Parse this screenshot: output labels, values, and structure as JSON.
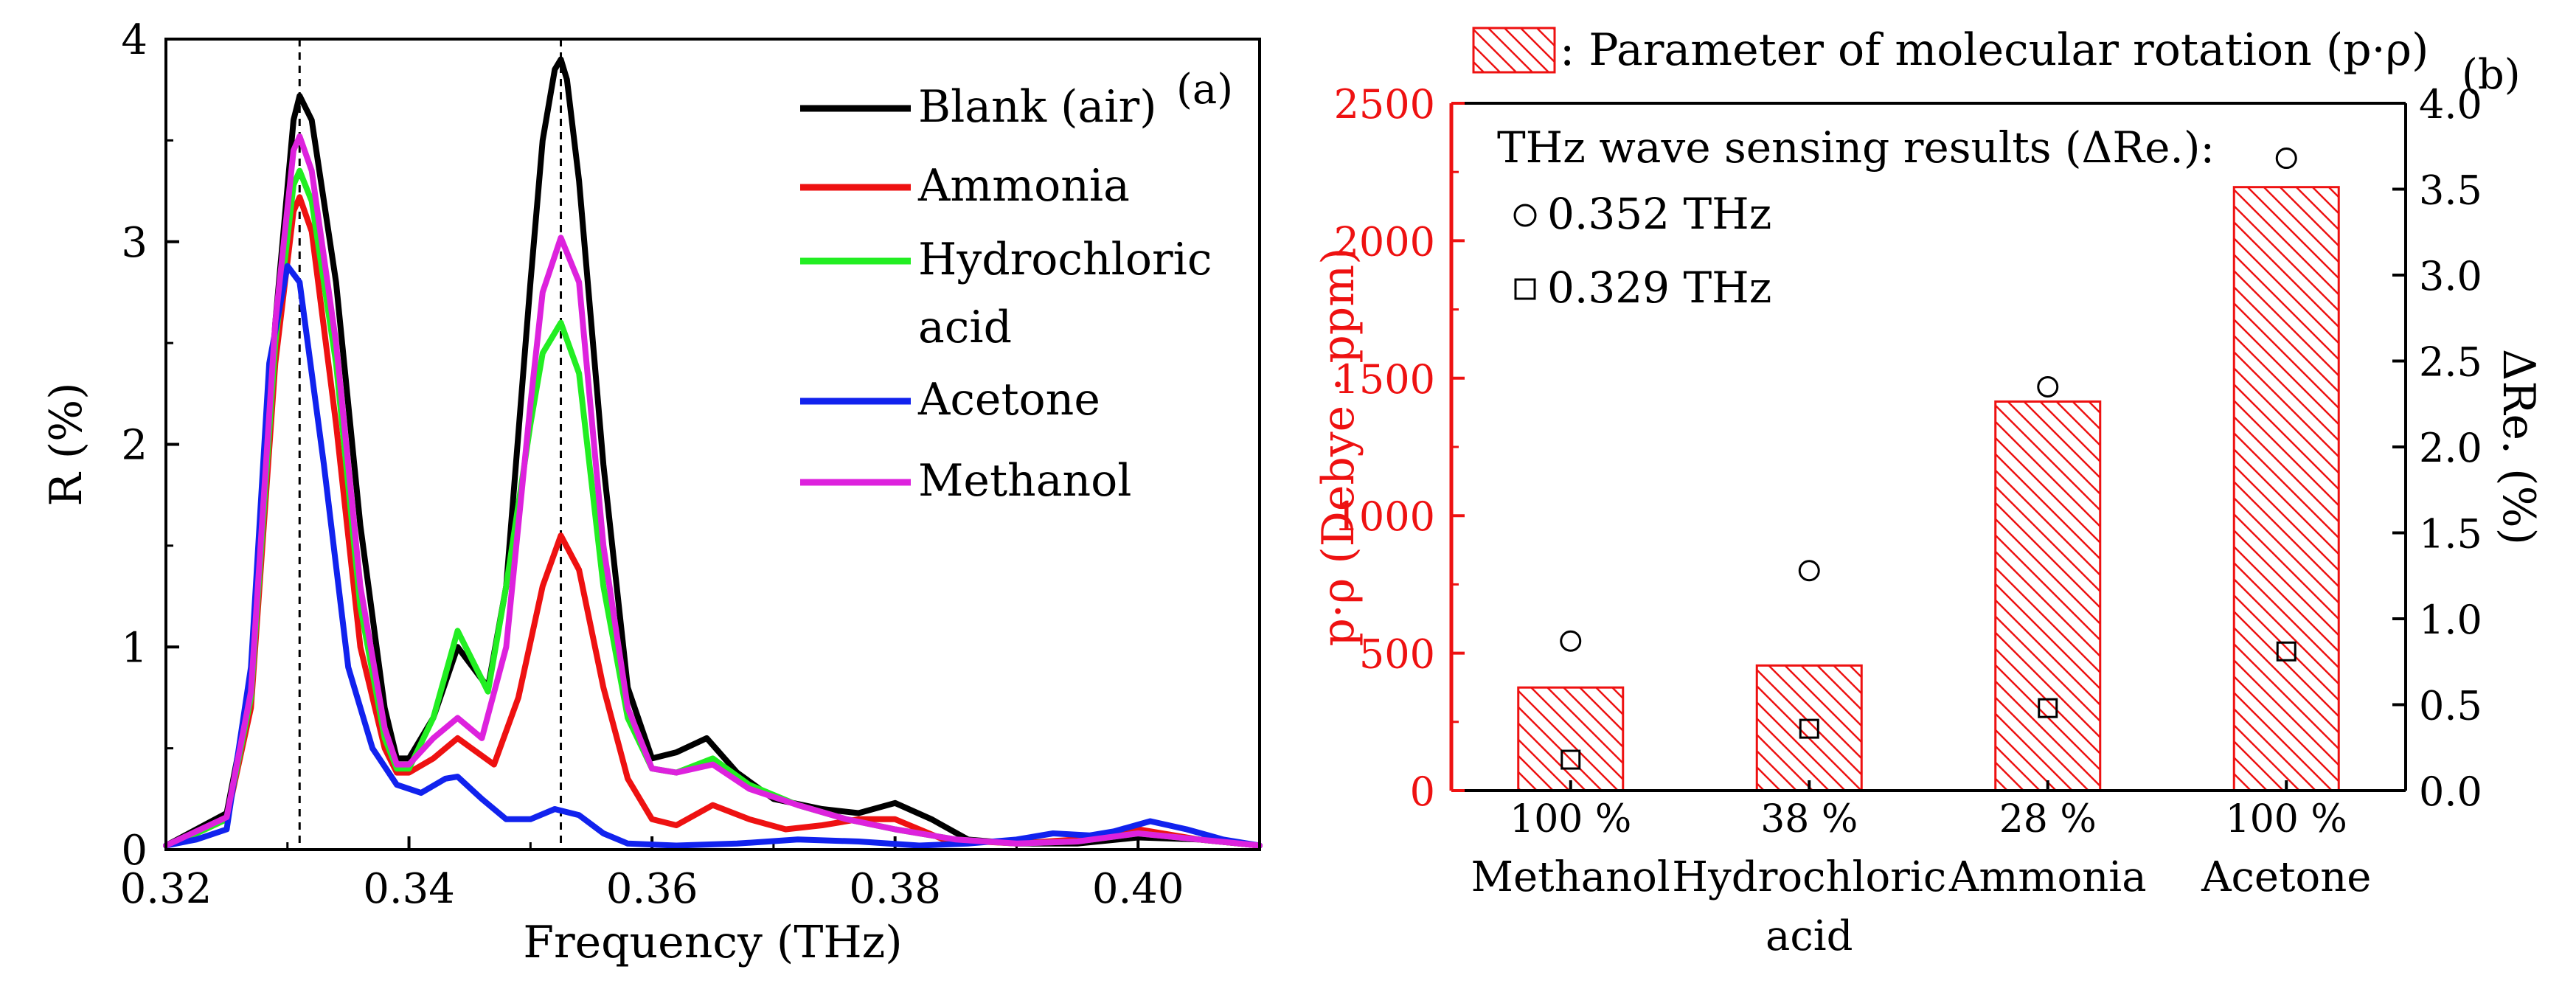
{
  "chart_data": [
    {
      "panel": "(a)",
      "type": "line",
      "xlabel": "Frequency (THz)",
      "ylabel": "R (%)",
      "xlim": [
        0.32,
        0.41
      ],
      "ylim": [
        0,
        4
      ],
      "xticks": [
        "0.32",
        "0.34",
        "0.36",
        "0.38",
        "0.40"
      ],
      "yticks": [
        "0",
        "1",
        "2",
        "3",
        "4"
      ],
      "markers": [
        0.331,
        0.3525
      ],
      "legend_position": "top-right",
      "series": [
        {
          "name": "Blank (air)",
          "legend": [
            "Blank (air)"
          ],
          "color": "#000000",
          "x": [
            0.32,
            0.3225,
            0.325,
            0.327,
            0.329,
            0.3305,
            0.331,
            0.332,
            0.334,
            0.336,
            0.338,
            0.339,
            0.34,
            0.342,
            0.344,
            0.3465,
            0.348,
            0.35,
            0.351,
            0.352,
            0.3525,
            0.353,
            0.354,
            0.356,
            0.358,
            0.36,
            0.362,
            0.3645,
            0.367,
            0.37,
            0.374,
            0.377,
            0.38,
            0.383,
            0.386,
            0.39,
            0.395,
            0.4,
            0.405,
            0.41
          ],
          "y": [
            0.02,
            0.1,
            0.18,
            0.8,
            2.6,
            3.6,
            3.72,
            3.6,
            2.8,
            1.6,
            0.7,
            0.45,
            0.45,
            0.65,
            1.0,
            0.8,
            1.3,
            2.8,
            3.5,
            3.85,
            3.9,
            3.8,
            3.3,
            1.9,
            0.8,
            0.45,
            0.48,
            0.55,
            0.38,
            0.25,
            0.2,
            0.18,
            0.23,
            0.15,
            0.05,
            0.03,
            0.03,
            0.06,
            0.05,
            0.02
          ]
        },
        {
          "name": "Ammonia",
          "legend": [
            "Ammonia"
          ],
          "color": "#ee1111",
          "x": [
            0.32,
            0.3225,
            0.325,
            0.327,
            0.329,
            0.3305,
            0.331,
            0.332,
            0.334,
            0.336,
            0.338,
            0.339,
            0.34,
            0.342,
            0.344,
            0.347,
            0.349,
            0.351,
            0.3525,
            0.354,
            0.356,
            0.358,
            0.36,
            0.362,
            0.365,
            0.368,
            0.371,
            0.374,
            0.377,
            0.38,
            0.384,
            0.39,
            0.395,
            0.4,
            0.405,
            0.41
          ],
          "y": [
            0.02,
            0.08,
            0.15,
            0.7,
            2.4,
            3.15,
            3.22,
            3.05,
            2.1,
            1.0,
            0.5,
            0.38,
            0.38,
            0.45,
            0.55,
            0.42,
            0.75,
            1.3,
            1.55,
            1.38,
            0.8,
            0.35,
            0.15,
            0.12,
            0.22,
            0.15,
            0.1,
            0.12,
            0.15,
            0.15,
            0.05,
            0.03,
            0.05,
            0.1,
            0.05,
            0.02
          ]
        },
        {
          "name": "Hydrochloric acid",
          "legend": [
            "Hydrochloric",
            "acid"
          ],
          "color": "#22ee22",
          "x": [
            0.32,
            0.3225,
            0.325,
            0.327,
            0.329,
            0.3305,
            0.331,
            0.332,
            0.334,
            0.336,
            0.338,
            0.339,
            0.34,
            0.342,
            0.344,
            0.3465,
            0.348,
            0.35,
            0.351,
            0.3525,
            0.354,
            0.356,
            0.358,
            0.36,
            0.362,
            0.365,
            0.368,
            0.372,
            0.376,
            0.38,
            0.385,
            0.39,
            0.395,
            0.4,
            0.405,
            0.41
          ],
          "y": [
            0.02,
            0.08,
            0.15,
            0.75,
            2.5,
            3.28,
            3.35,
            3.2,
            2.4,
            1.2,
            0.55,
            0.4,
            0.4,
            0.65,
            1.08,
            0.78,
            1.3,
            2.1,
            2.45,
            2.6,
            2.35,
            1.3,
            0.65,
            0.4,
            0.38,
            0.45,
            0.32,
            0.22,
            0.15,
            0.1,
            0.05,
            0.03,
            0.04,
            0.08,
            0.05,
            0.02
          ]
        },
        {
          "name": "Acetone",
          "legend": [
            "Acetone"
          ],
          "color": "#1122ee",
          "x": [
            0.32,
            0.3225,
            0.325,
            0.327,
            0.3285,
            0.33,
            0.331,
            0.333,
            0.335,
            0.337,
            0.339,
            0.341,
            0.343,
            0.344,
            0.346,
            0.348,
            0.35,
            0.352,
            0.354,
            0.356,
            0.358,
            0.362,
            0.367,
            0.372,
            0.377,
            0.382,
            0.386,
            0.39,
            0.393,
            0.396,
            0.398,
            0.401,
            0.404,
            0.407,
            0.41
          ],
          "y": [
            0.02,
            0.05,
            0.1,
            0.9,
            2.4,
            2.88,
            2.8,
            1.9,
            0.9,
            0.5,
            0.32,
            0.28,
            0.35,
            0.36,
            0.25,
            0.15,
            0.15,
            0.2,
            0.17,
            0.08,
            0.03,
            0.02,
            0.03,
            0.05,
            0.04,
            0.02,
            0.03,
            0.05,
            0.08,
            0.07,
            0.09,
            0.14,
            0.1,
            0.05,
            0.02
          ]
        },
        {
          "name": "Methanol",
          "legend": [
            "Methanol"
          ],
          "color": "#dd22dd",
          "x": [
            0.32,
            0.3225,
            0.325,
            0.327,
            0.329,
            0.3305,
            0.331,
            0.332,
            0.334,
            0.336,
            0.338,
            0.339,
            0.34,
            0.342,
            0.344,
            0.346,
            0.348,
            0.35,
            0.351,
            0.3525,
            0.354,
            0.356,
            0.358,
            0.36,
            0.362,
            0.365,
            0.368,
            0.372,
            0.376,
            0.38,
            0.385,
            0.39,
            0.395,
            0.4,
            0.405,
            0.41
          ],
          "y": [
            0.02,
            0.09,
            0.16,
            0.78,
            2.6,
            3.45,
            3.52,
            3.35,
            2.5,
            1.3,
            0.6,
            0.42,
            0.42,
            0.55,
            0.65,
            0.55,
            1.0,
            2.2,
            2.75,
            3.02,
            2.8,
            1.5,
            0.7,
            0.4,
            0.38,
            0.42,
            0.3,
            0.22,
            0.15,
            0.1,
            0.05,
            0.03,
            0.04,
            0.08,
            0.05,
            0.02
          ]
        }
      ]
    },
    {
      "panel": "(b)",
      "type": "bar",
      "bar_legend_label": ": Parameter of molecular rotation (p·ρ)",
      "categories": [
        {
          "lines": [
            "100 %",
            "Methanol"
          ]
        },
        {
          "lines": [
            "38 %",
            "Hydrochloric",
            "acid"
          ]
        },
        {
          "lines": [
            "28 %",
            "Ammonia"
          ]
        },
        {
          "lines": [
            "100 %",
            "Acetone"
          ]
        }
      ],
      "values": [
        375,
        455,
        1415,
        2195
      ],
      "ylabel_left": "p·ρ (Debye · ppm)",
      "ylabel_right": "ΔRe. (%)",
      "ylim_left": [
        0,
        2500
      ],
      "ylim_right": [
        0,
        4
      ],
      "yticks_left": [
        "0",
        "500",
        "1000",
        "1500",
        "2000",
        "2500"
      ],
      "yticks_right": [
        "0.0",
        "0.5",
        "1.0",
        "1.5",
        "2.0",
        "2.5",
        "3.0",
        "3.5",
        "4.0"
      ],
      "left_axis_color": "#ee1111",
      "bar_color": "#ee1111",
      "scatter_title": "THz wave sensing results (ΔRe.):",
      "scatter_series": [
        {
          "name": "0.352 THz",
          "marker": "circle",
          "values": [
            0.87,
            1.28,
            2.35,
            3.68
          ]
        },
        {
          "name": "0.329 THz",
          "marker": "square",
          "values": [
            0.18,
            0.36,
            0.48,
            0.81
          ]
        }
      ]
    }
  ]
}
